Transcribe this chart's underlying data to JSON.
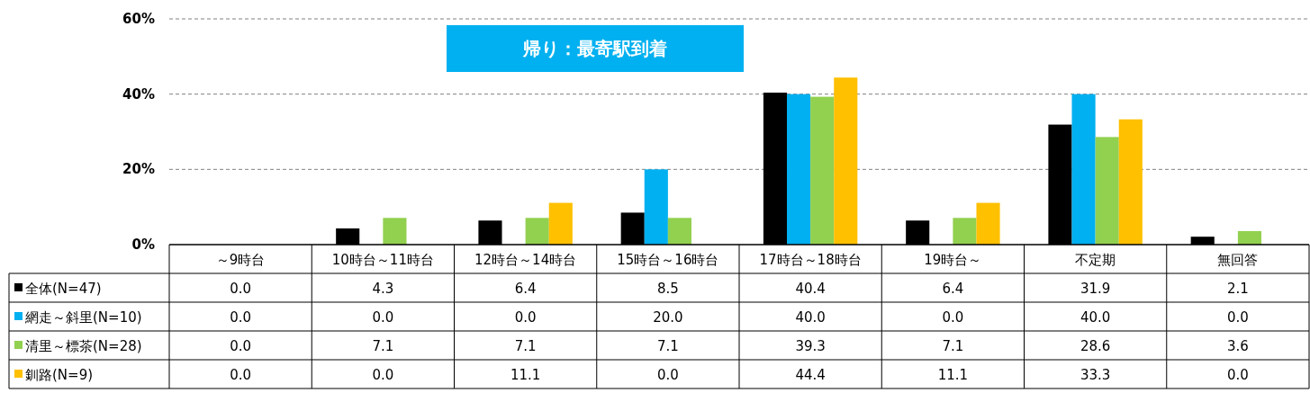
{
  "chart_data": {
    "type": "bar",
    "title": "帰り：最寄駅到着",
    "categories": [
      "～9時台",
      "10時台～11時台",
      "12時台～14時台",
      "15時台～16時台",
      "17時台～18時台",
      "19時台～",
      "不定期",
      "無回答"
    ],
    "series": [
      {
        "name": "全体(N=47)",
        "color": "#000000",
        "values": [
          0.0,
          4.3,
          6.4,
          8.5,
          40.4,
          6.4,
          31.9,
          2.1
        ],
        "value_labels": [
          "0.0",
          "4.3",
          "6.4",
          "8.5",
          "40.4",
          "6.4",
          "31.9",
          "2.1"
        ]
      },
      {
        "name": "網走～斜里(N=10)",
        "color": "#00b0f0",
        "values": [
          0.0,
          0.0,
          0.0,
          20.0,
          40.0,
          0.0,
          40.0,
          0.0
        ],
        "value_labels": [
          "0.0",
          "0.0",
          "0.0",
          "20.0",
          "40.0",
          "0.0",
          "40.0",
          "0.0"
        ]
      },
      {
        "name": "清里～標茶(N=28)",
        "color": "#92d050",
        "values": [
          0.0,
          7.1,
          7.1,
          7.1,
          39.3,
          7.1,
          28.6,
          3.6
        ],
        "value_labels": [
          "0.0",
          "7.1",
          "7.1",
          "7.1",
          "39.3",
          "7.1",
          "28.6",
          "3.6"
        ]
      },
      {
        "name": "釧路(N=9)",
        "color": "#ffc000",
        "values": [
          0.0,
          0.0,
          11.1,
          0.0,
          44.4,
          11.1,
          33.3,
          0.0
        ],
        "value_labels": [
          "0.0",
          "0.0",
          "11.1",
          "0.0",
          "44.4",
          "11.1",
          "33.3",
          "0.0"
        ]
      }
    ],
    "ylim": [
      0,
      60
    ],
    "yticks": [
      {
        "value": 0,
        "label": "0%"
      },
      {
        "value": 20,
        "label": "20%"
      },
      {
        "value": 40,
        "label": "40%"
      },
      {
        "value": 60,
        "label": "60%"
      }
    ],
    "grid": "y",
    "legend": "bottom left"
  }
}
